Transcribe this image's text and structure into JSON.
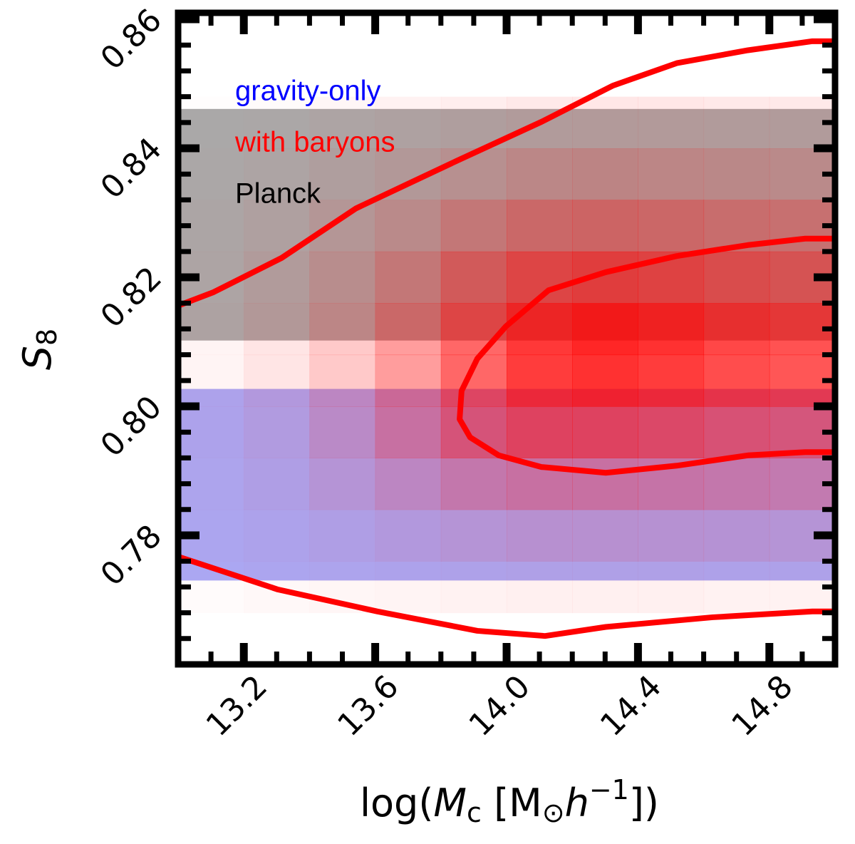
{
  "chart_data": {
    "type": "heatmap-contour",
    "xlabel_parts": [
      {
        "text": "log("
      },
      {
        "text": "M",
        "style": "italic"
      },
      {
        "text": "c",
        "shift": "sub"
      },
      {
        "text": " [M"
      },
      {
        "text": "⊙",
        "shift": "sub"
      },
      {
        "text": "h",
        "style": "italic"
      },
      {
        "text": "−1",
        "shift": "super"
      },
      {
        "text": "])"
      }
    ],
    "ylabel_parts": [
      {
        "text": "S",
        "style": "italic"
      },
      {
        "text": "8",
        "shift": "sub"
      }
    ],
    "xlim": [
      13.0,
      15.0
    ],
    "ylim": [
      0.76,
      0.861
    ],
    "xticks": [
      13.2,
      13.6,
      {
        "value": 14,
        "label": "14.0"
      },
      14.4,
      14.8
    ],
    "xminorticks": [
      13.1,
      13.3,
      13.4,
      13.5,
      13.7,
      13.8,
      13.9,
      14.1,
      14.2,
      14.3,
      14.5,
      14.6,
      14.7,
      14.9
    ],
    "yticks": [
      0.78,
      {
        "value": 0.8,
        "label": "0.80"
      },
      0.82,
      0.84,
      0.86
    ],
    "yminorticks": [
      0.764,
      0.768,
      0.772,
      0.776,
      0.784,
      0.788,
      0.792,
      0.796,
      0.804,
      0.808,
      0.812,
      0.816,
      0.824,
      0.828,
      0.832,
      0.836,
      0.844,
      0.848,
      0.852,
      0.856
    ],
    "legend": "upper left",
    "series": [
      {
        "name": "gravity-only",
        "color": "#0000ff",
        "fill": "#aaaaf6",
        "band": [
          0.773,
          0.8027
        ]
      },
      {
        "name": "with baryons",
        "color": "#ff0000",
        "x_edges": [
          13.0,
          13.2,
          13.4,
          13.6,
          13.8,
          14.0,
          14.2,
          14.4,
          14.6,
          14.8,
          15.0
        ],
        "y_edges": [
          0.768,
          0.776,
          0.784,
          0.792,
          0.8,
          0.808,
          0.816,
          0.824,
          0.832,
          0.84,
          0.848
        ],
        "values": [
          [
            0.02,
            0.03,
            0.04,
            0.05,
            0.06,
            0.07,
            0.07,
            0.07,
            0.06,
            0.06
          ],
          [
            0.03,
            0.05,
            0.08,
            0.12,
            0.15,
            0.18,
            0.18,
            0.17,
            0.16,
            0.15
          ],
          [
            0.04,
            0.08,
            0.15,
            0.25,
            0.35,
            0.4,
            0.4,
            0.38,
            0.35,
            0.33
          ],
          [
            0.05,
            0.1,
            0.22,
            0.4,
            0.6,
            0.72,
            0.72,
            0.68,
            0.62,
            0.58
          ],
          [
            0.05,
            0.12,
            0.25,
            0.45,
            0.7,
            0.9,
            0.95,
            0.9,
            0.82,
            0.78
          ],
          [
            0.05,
            0.12,
            0.25,
            0.45,
            0.7,
            0.92,
            1.0,
            0.95,
            0.85,
            0.8
          ],
          [
            0.04,
            0.1,
            0.2,
            0.35,
            0.55,
            0.7,
            0.75,
            0.72,
            0.65,
            0.6
          ],
          [
            0.03,
            0.07,
            0.14,
            0.22,
            0.35,
            0.45,
            0.48,
            0.46,
            0.42,
            0.4
          ],
          [
            0.02,
            0.04,
            0.08,
            0.12,
            0.18,
            0.24,
            0.26,
            0.25,
            0.23,
            0.22
          ],
          [
            0.01,
            0.02,
            0.04,
            0.06,
            0.08,
            0.1,
            0.11,
            0.11,
            0.1,
            0.1
          ]
        ],
        "contours": [
          {
            "x": [
              13.0,
              13.108,
              13.315,
              13.542,
              13.846,
              14.106,
              14.323,
              14.518,
              14.735,
              14.931,
              15.0
            ],
            "y": [
              0.8156,
              0.8177,
              0.823,
              0.8307,
              0.838,
              0.8441,
              0.8497,
              0.8532,
              0.8552,
              0.8566,
              0.8566
            ]
          },
          {
            "x": [
              13.0,
              13.304,
              13.607,
              13.911,
              14.117,
              14.302,
              14.627,
              14.931,
              15.0
            ],
            "y": [
              0.7767,
              0.7716,
              0.7682,
              0.7652,
              0.7644,
              0.7658,
              0.7673,
              0.7682,
              0.7682
            ]
          },
          {
            "x": [
              15.0,
              14.909,
              14.735,
              14.518,
              14.302,
              14.128,
              13.998,
              13.911,
              13.863,
              13.857,
              13.889,
              13.976,
              14.106,
              14.302,
              14.518,
              14.735,
              14.909,
              15.0
            ],
            "y": [
              0.826,
              0.826,
              0.825,
              0.8233,
              0.8208,
              0.818,
              0.8124,
              0.8074,
              0.8024,
              0.798,
              0.7952,
              0.7924,
              0.7906,
              0.7897,
              0.7908,
              0.7924,
              0.7929,
              0.7929
            ]
          }
        ]
      },
      {
        "name": "Planck",
        "color": "#000000",
        "fill": "#aaaaaa",
        "band": [
          0.8102,
          0.8461
        ]
      }
    ]
  }
}
